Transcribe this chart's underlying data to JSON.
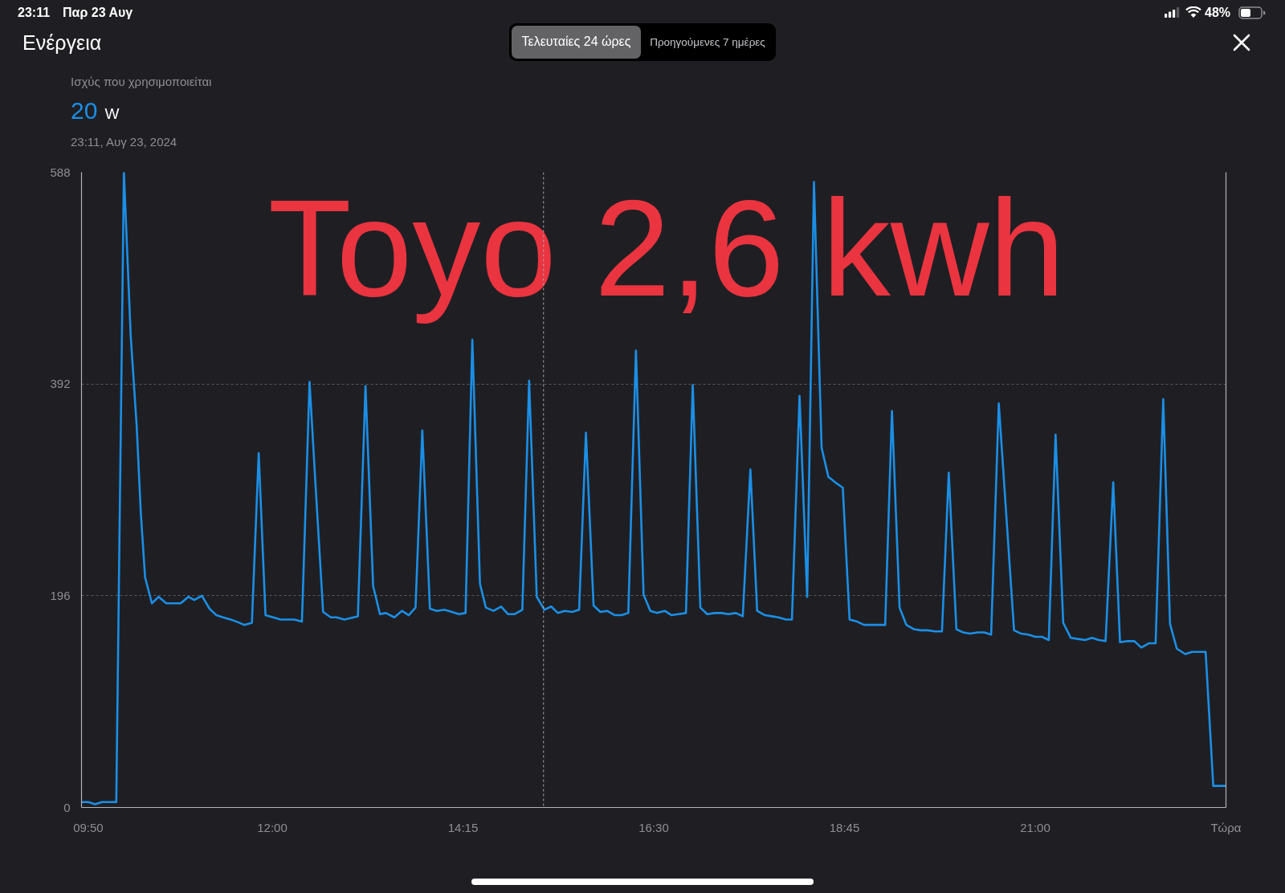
{
  "chart_data": {
    "type": "line",
    "title": "Ενέργεια",
    "subtitle": "Ισχύς που χρησιμοποιείται",
    "annotations": [
      "23:11",
      "Παρ 23 Αυγ",
      "48%",
      "Τελευταίες 24 ώρες",
      "Προηγούμενες 7 ημέρες",
      "20 W",
      "23:11, Αυγ 23, 2024",
      "Toyo 2,6 kwh"
    ],
    "x": [
      9.75,
      9.83,
      9.91,
      9.99,
      10.16,
      10.25,
      10.33,
      10.4,
      10.45,
      10.5,
      10.58,
      10.66,
      10.75,
      10.92,
      11.01,
      11.08,
      11.17,
      11.26,
      11.34,
      11.42,
      11.51,
      11.58,
      11.67,
      11.76,
      11.84,
      11.92,
      12.01,
      12.1,
      12.26,
      12.35,
      12.44,
      12.51,
      12.6,
      12.69,
      12.76,
      12.85,
      13.01,
      13.1,
      13.19,
      13.27,
      13.34,
      13.44,
      13.53,
      13.61,
      13.69,
      13.77,
      13.86,
      13.94,
      14.03,
      14.12,
      14.2,
      14.28,
      14.36,
      14.45,
      14.52,
      14.61,
      14.7,
      14.78,
      14.86,
      14.95,
      15.03,
      15.12,
      15.21,
      15.29,
      15.37,
      15.45,
      15.54,
      15.62,
      15.7,
      15.79,
      15.87,
      15.95,
      16.04,
      16.12,
      16.2,
      16.29,
      16.38,
      16.46,
      16.54,
      16.63,
      16.71,
      16.79,
      16.88,
      16.96,
      17.05,
      17.13,
      17.22,
      17.3,
      17.38,
      17.47,
      17.55,
      17.64,
      17.72,
      17.81,
      17.89,
      17.97,
      18.06,
      18.13,
      18.22,
      18.31,
      18.39,
      18.48,
      18.56,
      18.64,
      18.73,
      18.81,
      18.9,
      18.98,
      19.06,
      19.15,
      19.23,
      19.31,
      19.4,
      19.48,
      19.57,
      19.65,
      19.73,
      19.82,
      19.9,
      19.98,
      20.07,
      20.15,
      20.23,
      20.32,
      20.4,
      20.48,
      20.57,
      20.75,
      20.83,
      20.92,
      21.0,
      21.08,
      21.16,
      21.24,
      21.33,
      21.42,
      21.5,
      21.59,
      21.67,
      21.75,
      21.83,
      21.92,
      22.0,
      22.09,
      22.17,
      22.25,
      22.34,
      22.42,
      22.51,
      22.59,
      22.67,
      22.77,
      22.85,
      23.01,
      23.1,
      23.25
    ],
    "values": [
      5,
      5,
      3,
      5,
      5,
      588,
      437,
      354,
      272,
      213,
      189,
      195,
      189,
      189,
      195,
      192,
      196,
      184,
      178,
      176,
      174,
      172,
      169,
      171,
      328,
      178,
      176,
      174,
      174,
      172,
      394,
      299,
      181,
      176,
      176,
      174,
      177,
      390,
      205,
      179,
      180,
      176,
      182,
      178,
      185,
      349,
      184,
      182,
      183,
      181,
      179,
      180,
      433,
      207,
      185,
      182,
      186,
      179,
      179,
      183,
      395,
      195,
      183,
      186,
      180,
      182,
      181,
      183,
      347,
      187,
      181,
      182,
      178,
      178,
      180,
      423,
      197,
      182,
      180,
      182,
      178,
      179,
      180,
      391,
      185,
      179,
      180,
      180,
      179,
      180,
      177,
      313,
      182,
      178,
      177,
      176,
      174,
      174,
      381,
      195,
      579,
      333,
      306,
      301,
      296,
      174,
      172,
      169,
      169,
      169,
      169,
      367,
      185,
      169,
      165,
      164,
      164,
      163,
      163,
      310,
      165,
      162,
      161,
      162,
      162,
      160,
      374,
      164,
      161,
      160,
      158,
      158,
      155,
      345,
      171,
      157,
      156,
      155,
      157,
      155,
      154,
      301,
      153,
      154,
      154,
      148,
      152,
      152,
      378,
      170,
      147,
      142,
      144,
      144,
      20,
      20
    ],
    "color": "#1b8fe6",
    "xlim": [
      9.75,
      23.25
    ],
    "xticks": [
      {
        "value": 9.83,
        "label": "09:50"
      },
      {
        "value": 12,
        "label": "12:00"
      },
      {
        "value": 14.25,
        "label": "14:15"
      },
      {
        "value": 16.5,
        "label": "16:30"
      },
      {
        "value": 18.75,
        "label": "18:45"
      },
      {
        "value": 21,
        "label": "21:00"
      },
      {
        "value": 23.25,
        "label": "Τώρα"
      }
    ],
    "ylim": [
      0,
      588
    ],
    "yticks": [
      0,
      196,
      392,
      588
    ],
    "grid": "y",
    "ref_lines": [
      {
        "axis": "x",
        "value": 15.2,
        "color": "#a9a9ad",
        "line_style": "dashed"
      }
    ]
  }
}
